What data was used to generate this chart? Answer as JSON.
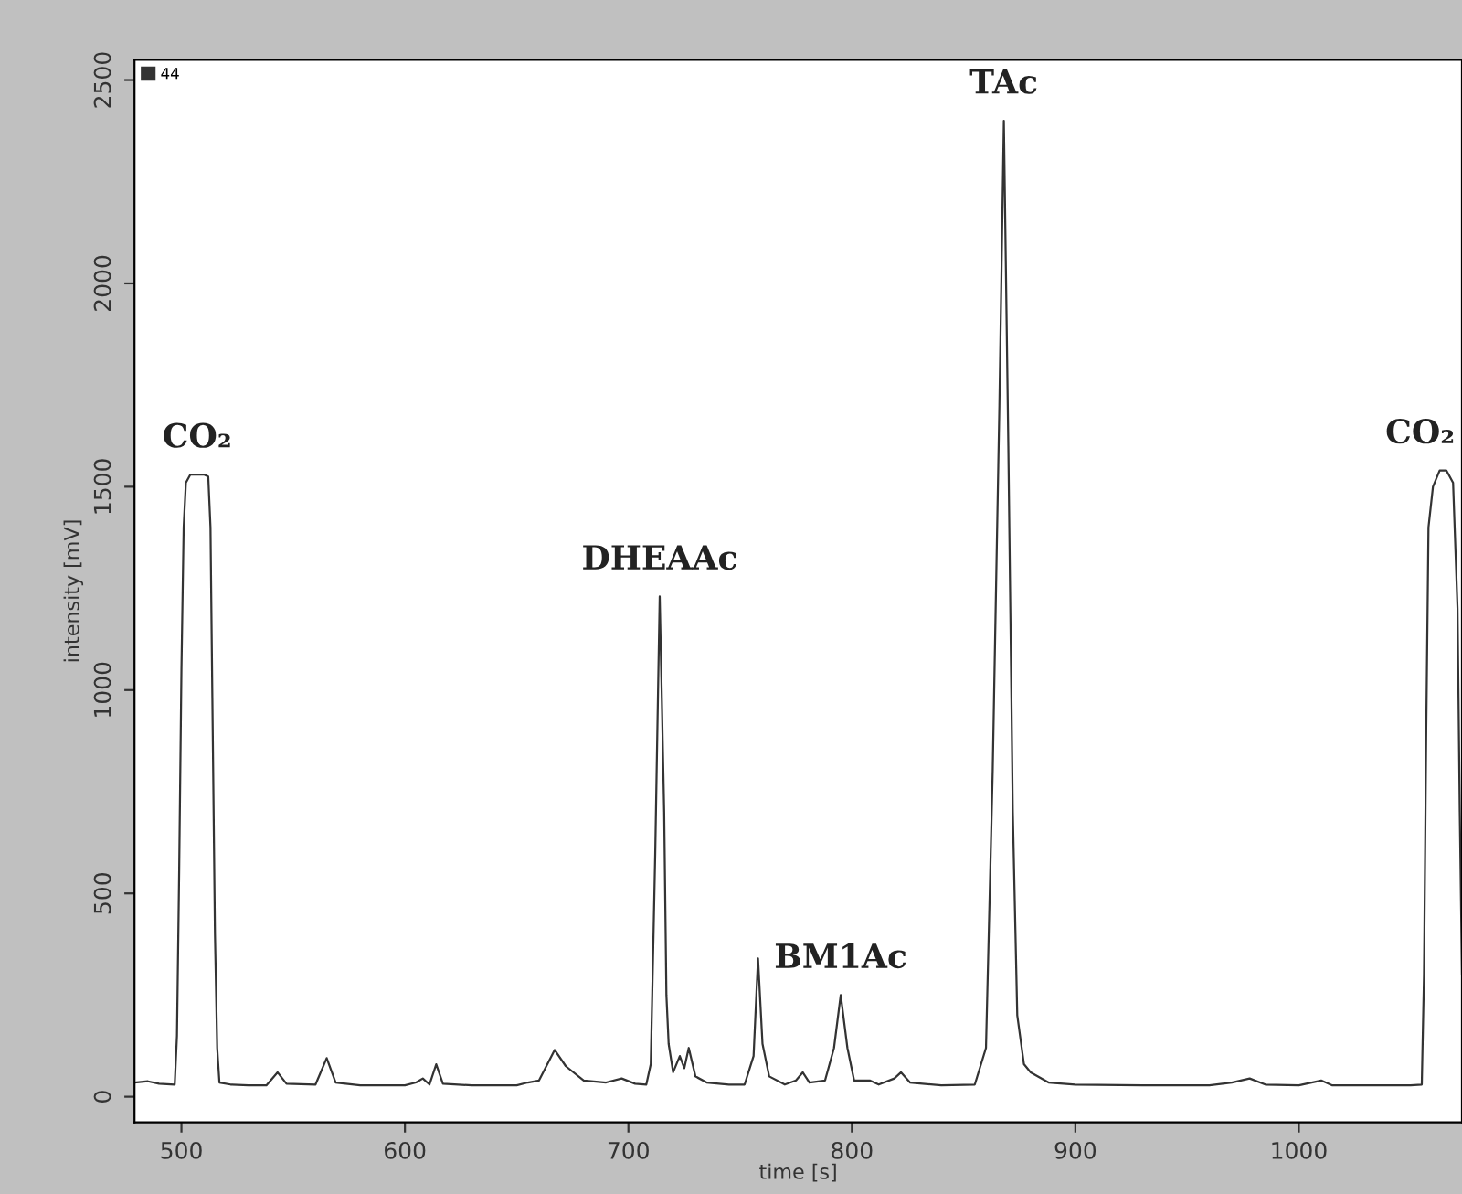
{
  "chart_data": {
    "type": "line",
    "xlabel": "time [s]",
    "ylabel": "intensity [mV]",
    "xlim": [
      479,
      1073
    ],
    "ylim": [
      -63,
      2550
    ],
    "xticks": [
      500,
      600,
      700,
      800,
      900,
      1000
    ],
    "yticks": [
      0,
      500,
      1000,
      1500,
      2000,
      2500
    ],
    "grid": false,
    "legend": "top left",
    "marker": "none",
    "line_style": "solid",
    "series": [
      {
        "name": "44",
        "color": "#333333",
        "x": [
          479,
          485,
          490,
          497,
          498,
          499,
          500,
          501,
          502,
          504,
          510,
          512,
          513,
          514,
          515,
          516,
          517,
          522,
          530,
          538,
          543,
          547,
          560,
          565,
          569,
          580,
          600,
          605,
          608,
          611,
          614,
          617,
          630,
          650,
          655,
          660,
          667,
          672,
          680,
          690,
          697,
          703,
          708,
          710,
          712,
          714,
          716,
          717,
          718,
          720,
          723,
          725,
          727,
          730,
          735,
          745,
          752,
          756,
          758,
          760,
          763,
          770,
          775,
          778,
          781,
          788,
          792,
          795,
          798,
          801,
          808,
          812,
          819,
          822,
          826,
          840,
          855,
          860,
          863,
          866,
          868,
          870,
          872,
          874,
          877,
          880,
          888,
          900,
          930,
          960,
          970,
          978,
          985,
          1000,
          1010,
          1015,
          1050,
          1055,
          1056,
          1057,
          1058,
          1060,
          1063,
          1066,
          1069,
          1071,
          1072,
          1073
        ],
        "values": [
          35,
          38,
          32,
          30,
          150,
          560,
          1050,
          1400,
          1510,
          1530,
          1530,
          1525,
          1400,
          900,
          400,
          120,
          35,
          30,
          28,
          28,
          60,
          32,
          30,
          95,
          35,
          28,
          28,
          35,
          45,
          30,
          80,
          32,
          28,
          28,
          35,
          40,
          115,
          75,
          40,
          35,
          45,
          32,
          30,
          80,
          600,
          1230,
          700,
          250,
          130,
          60,
          100,
          70,
          120,
          50,
          35,
          30,
          30,
          100,
          340,
          130,
          50,
          30,
          40,
          60,
          35,
          40,
          120,
          250,
          120,
          40,
          40,
          30,
          45,
          60,
          35,
          28,
          30,
          120,
          800,
          1700,
          2400,
          1600,
          700,
          200,
          80,
          60,
          35,
          30,
          28,
          28,
          35,
          45,
          30,
          28,
          40,
          28,
          28,
          30,
          300,
          900,
          1400,
          1500,
          1540,
          1540,
          1510,
          1200,
          700,
          300
        ]
      }
    ],
    "annotations": [
      {
        "text": "CO₂",
        "x": 507,
        "y": 1530
      },
      {
        "text": "DHEAAc",
        "x": 714,
        "y": 1230
      },
      {
        "text": "BM1Ac",
        "x": 795,
        "y": 250
      },
      {
        "text": "TAc",
        "x": 868,
        "y": 2400
      },
      {
        "text": "CO₂",
        "x": 1063,
        "y": 1540
      }
    ]
  }
}
